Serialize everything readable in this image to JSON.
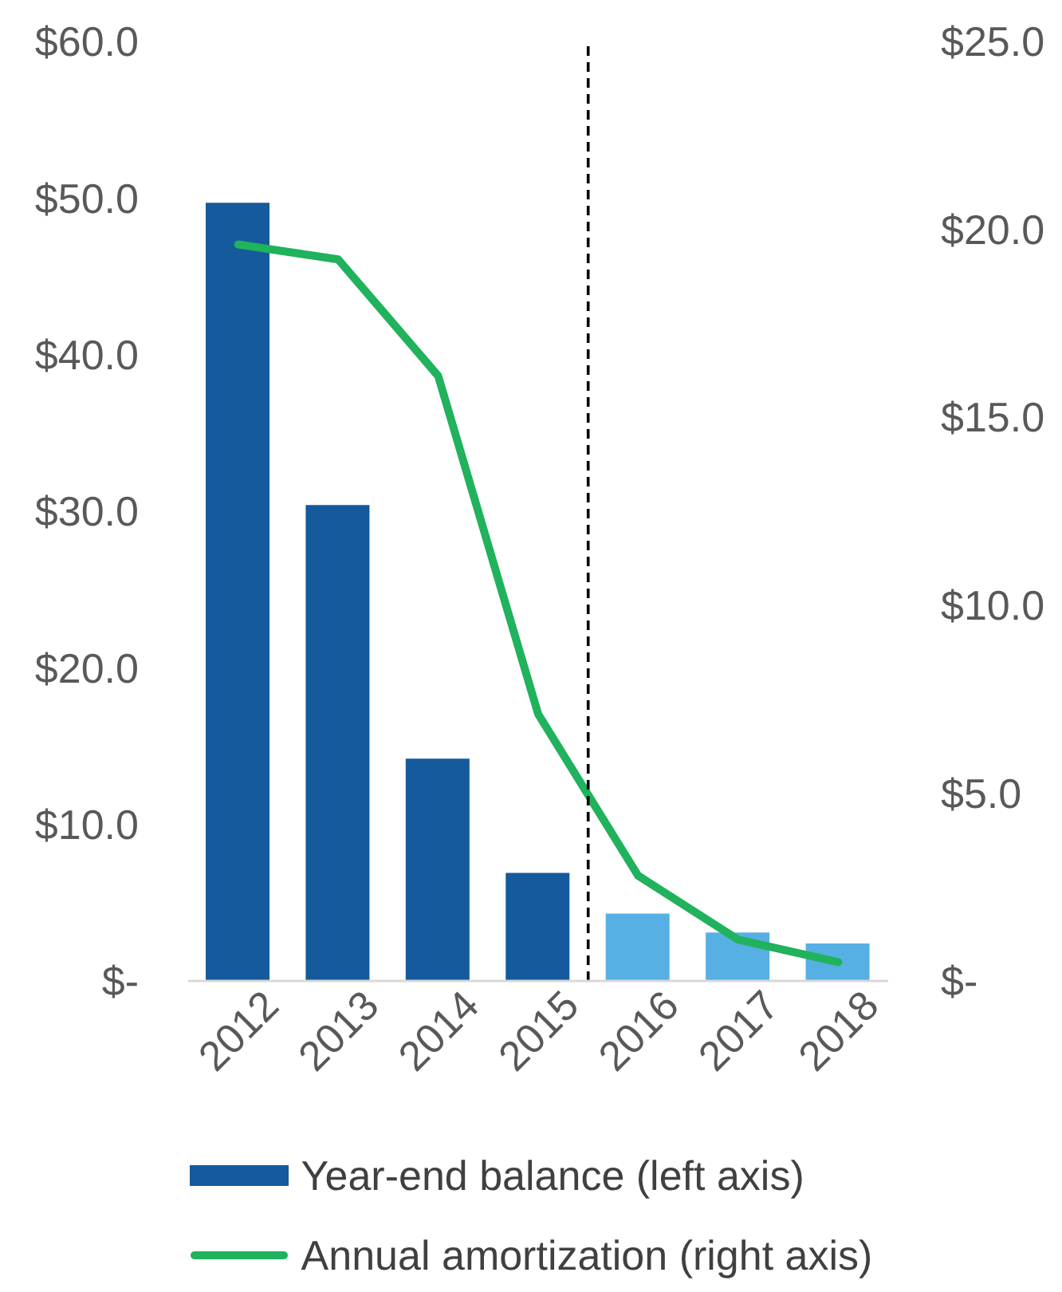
{
  "chart_data": {
    "type": "bar",
    "x": [
      2012,
      2013,
      2014,
      2015,
      2016,
      2017,
      2018
    ],
    "xlim": [
      2011.5,
      2018.5
    ],
    "xticks": [
      2012,
      2013,
      2014,
      2015,
      2016,
      2017,
      2018
    ],
    "ylim": [
      0,
      60
    ],
    "yticks": [
      {
        "value": 0,
        "label": "$-"
      },
      {
        "value": 10,
        "label": "$10.0"
      },
      {
        "value": 20,
        "label": "$20.0"
      },
      {
        "value": 30,
        "label": "$30.0"
      },
      {
        "value": 40,
        "label": "$40.0"
      },
      {
        "value": 50,
        "label": "$50.0"
      },
      {
        "value": 60,
        "label": "$60.0"
      }
    ],
    "y2lim": [
      0,
      25
    ],
    "y2ticks": [
      {
        "value": 0,
        "label": "$-"
      },
      {
        "value": 5,
        "label": "$5.0"
      },
      {
        "value": 10,
        "label": "$10.0"
      },
      {
        "value": 15,
        "label": "$15.0"
      },
      {
        "value": 20,
        "label": "$20.0"
      },
      {
        "value": 25,
        "label": "$25.0"
      }
    ],
    "series": [
      {
        "name": "Year-end balance (left axis)",
        "color": "#155a9c",
        "colors": [
          "#155a9c",
          "#155a9c",
          "#155a9c",
          "#155a9c",
          "#56b0e3",
          "#56b0e3",
          "#56b0e3"
        ],
        "values": [
          49.7,
          30.4,
          14.2,
          6.9,
          4.3,
          3.1,
          2.4
        ]
      },
      {
        "name": "Annual amortization (right axis)",
        "type": "line",
        "axis": "y2",
        "color": "#20b25c",
        "values": [
          19.6,
          19.2,
          16.1,
          7.1,
          2.8,
          1.1,
          0.5
        ]
      }
    ],
    "ref_lines": [
      {
        "axis": "x",
        "value": 2015.5,
        "color": "#000000",
        "line_style": "dashed"
      }
    ],
    "legend": "bottom",
    "marker": "none"
  }
}
